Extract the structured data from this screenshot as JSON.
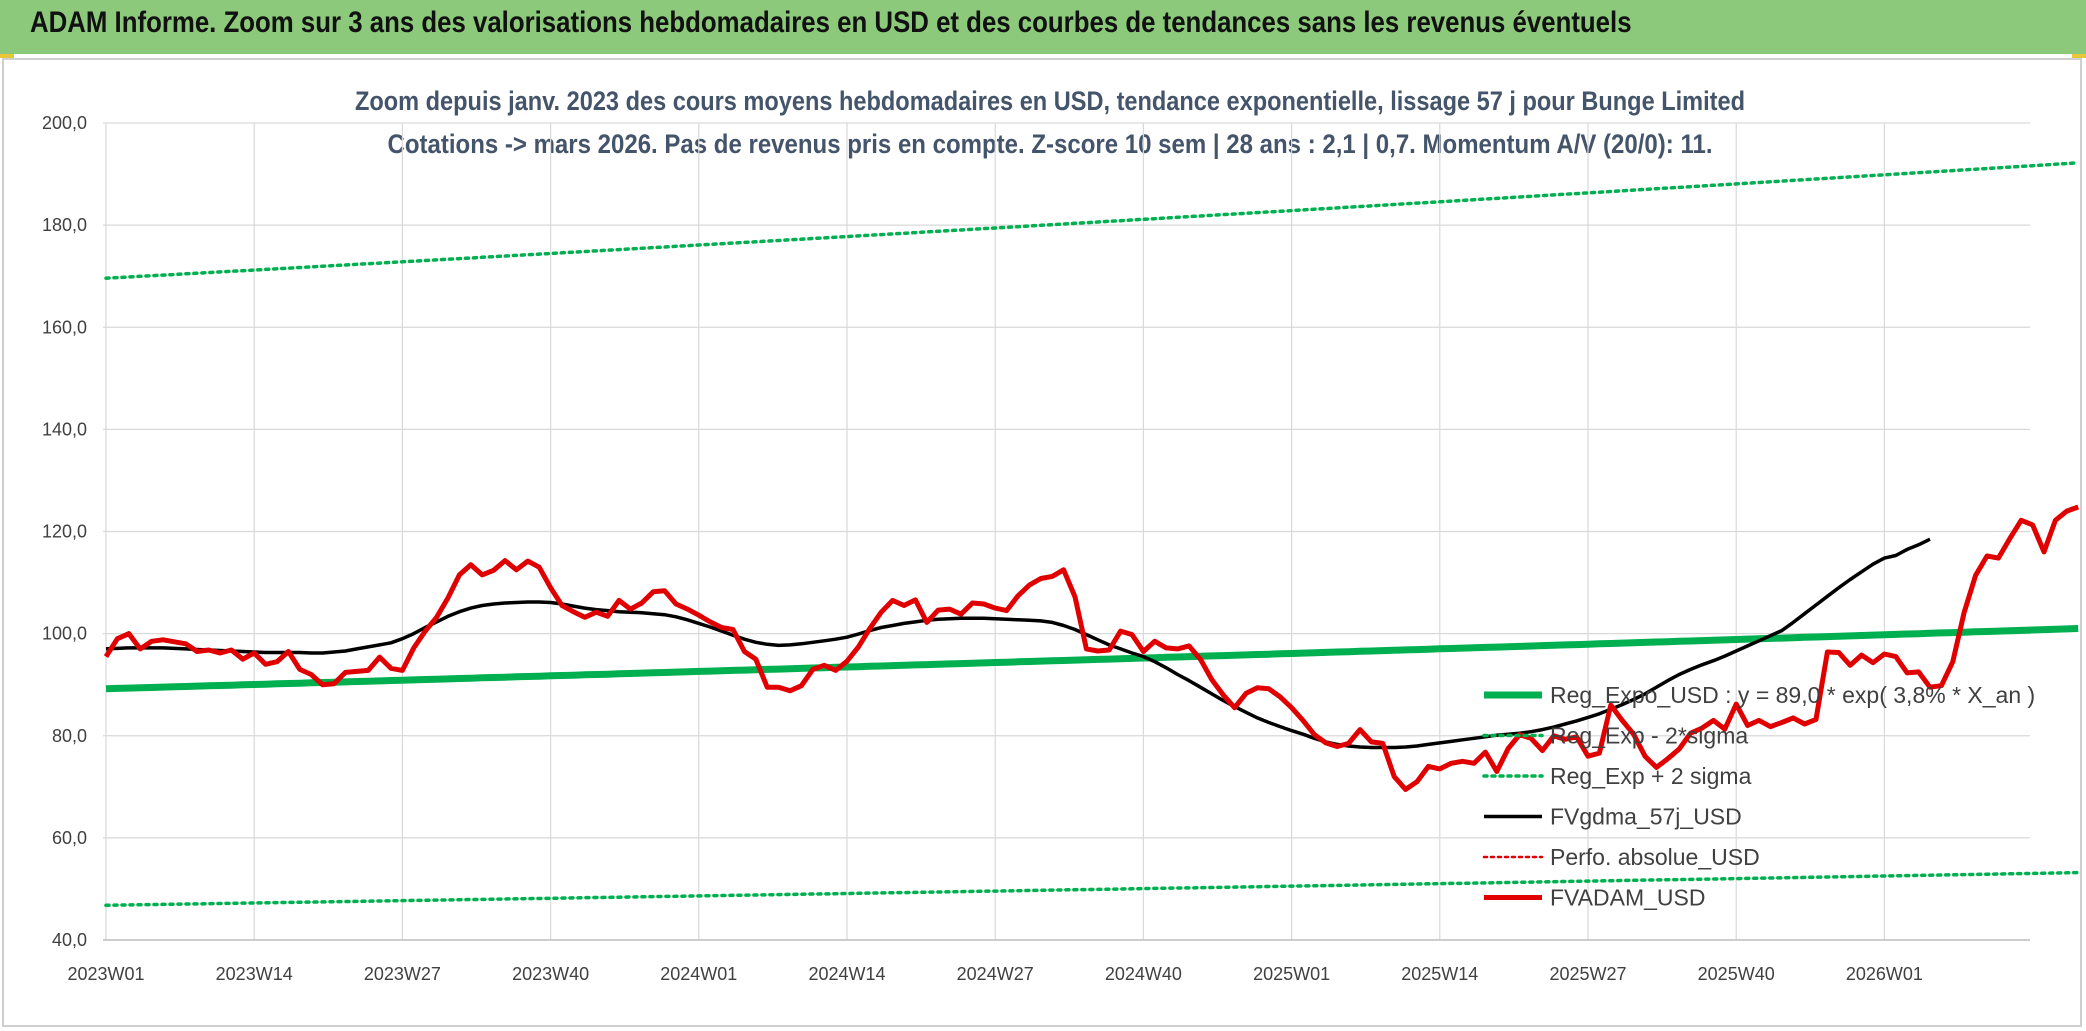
{
  "header": {
    "title": "ADAM Informe. Zoom sur 3 ans des valorisations hebdomadaires en USD et des courbes de tendances sans les revenus éventuels"
  },
  "chart_data": {
    "type": "line",
    "title_line1": "Zoom depuis janv. 2023 des cours moyens hebdomadaires en USD, tendance exponentielle, lissage 57 j pour Bunge Limited",
    "title_line2": "Cotations -> mars 2026. Pas de revenus pris en compte. Z-score 10 sem | 28 ans : 2,1 | 0,7. Momentum A/V (20/0): 11.",
    "ylim": [
      40,
      200
    ],
    "y_ticks": [
      "40,0",
      "60,0",
      "80,0",
      "100,0",
      "120,0",
      "140,0",
      "160,0",
      "180,0",
      "200,0"
    ],
    "x_ticks": [
      "2023W01",
      "2023W14",
      "2023W27",
      "2023W40",
      "2024W01",
      "2024W14",
      "2024W27",
      "2024W40",
      "2025W01",
      "2025W14",
      "2025W27",
      "2025W40",
      "2026W01"
    ],
    "grid": true,
    "legend_position": "lower-right",
    "colors": {
      "reg_expo": "#00b050",
      "sigma": "#00b050",
      "fvgdma": "#000000",
      "perfo": "#e00000",
      "fvadam": "#e00000"
    },
    "legend": [
      {
        "key": "reg_expo",
        "label": "Reg_Expo_USD : y = 89,0 * exp( 3,8% *  X_an )"
      },
      {
        "key": "sigma_minus",
        "label": "Reg_Exp - 2*sigma"
      },
      {
        "key": "sigma_plus",
        "label": "Reg_Exp + 2 sigma"
      },
      {
        "key": "fvgdma",
        "label": "FVgdma_57j_USD"
      },
      {
        "key": "perfo",
        "label": "Perfo. absolue_USD"
      },
      {
        "key": "fvadam",
        "label": "FVADAM_USD"
      }
    ],
    "series": {
      "reg_expo": {
        "start": 89.2,
        "end": 101.0
      },
      "sigma_minus": {
        "start": 46.8,
        "end": 53.2
      },
      "sigma_plus": {
        "start": 169.6,
        "end": 192.2
      },
      "fvgdma": [
        97,
        97.1,
        97.2,
        97.2,
        97.2,
        97.2,
        97.1,
        97,
        96.9,
        96.8,
        96.7,
        96.6,
        96.5,
        96.4,
        96.3,
        96.3,
        96.3,
        96.3,
        96.2,
        96.2,
        96.4,
        96.6,
        97,
        97.4,
        97.8,
        98.2,
        99,
        100,
        101.2,
        102.3,
        103.4,
        104.3,
        105,
        105.5,
        105.8,
        106,
        106.1,
        106.2,
        106.2,
        106.1,
        105.8,
        105.4,
        105,
        104.7,
        104.5,
        104.3,
        104.2,
        104.1,
        103.9,
        103.7,
        103.3,
        102.7,
        102,
        101.3,
        100.5,
        99.7,
        98.9,
        98.3,
        97.9,
        97.7,
        97.8,
        98,
        98.3,
        98.6,
        98.9,
        99.3,
        99.9,
        100.6,
        101.2,
        101.6,
        102,
        102.3,
        102.6,
        102.8,
        102.9,
        103,
        103,
        103,
        102.9,
        102.8,
        102.7,
        102.6,
        102.5,
        102.2,
        101.6,
        100.8,
        99.8,
        98.8,
        97.8,
        97,
        96.2,
        95.5,
        94.5,
        93.3,
        92,
        90.8,
        89.5,
        88.2,
        86.9,
        85.7,
        84.6,
        83.5,
        82.6,
        81.8,
        81,
        80.3,
        79.5,
        78.8,
        78.3,
        78,
        77.8,
        77.7,
        77.7,
        77.7,
        77.8,
        78,
        78.3,
        78.6,
        78.9,
        79.2,
        79.5,
        79.8,
        80.1,
        80.3,
        80.5,
        80.8,
        81.2,
        81.7,
        82.3,
        82.9,
        83.6,
        84.3,
        85.2,
        86.1,
        87.1,
        88.2,
        89.5,
        90.8,
        92,
        93,
        93.9,
        94.7,
        95.6,
        96.6,
        97.6,
        98.6,
        99.6,
        100.6,
        102.2,
        103.9,
        105.6,
        107.3,
        109,
        110.6,
        112.1,
        113.6,
        114.8,
        115.3,
        116.5,
        117.4,
        118.5
      ],
      "fvadam": [
        95.5,
        99,
        100,
        97,
        98.5,
        98.8,
        98.4,
        98,
        96.5,
        96.8,
        96.2,
        96.8,
        95,
        96.2,
        94,
        94.5,
        96.5,
        93,
        92,
        90,
        90.2,
        92.4,
        92.6,
        92.8,
        95.4,
        93.2,
        92.8,
        97.2,
        100.5,
        103.2,
        107,
        111.5,
        113.5,
        111.5,
        112.4,
        114.3,
        112.5,
        114.2,
        113,
        109,
        105.5,
        104.3,
        103.2,
        104.2,
        103.4,
        106.5,
        104.8,
        106,
        108.2,
        108.4,
        105.8,
        104.8,
        103.6,
        102.3,
        101.2,
        100.8,
        96.5,
        95,
        89.5,
        89.5,
        88.8,
        89.8,
        93,
        93.8,
        92.8,
        94.6,
        97.4,
        101,
        104.2,
        106.5,
        105.5,
        106.6,
        102.2,
        104.6,
        104.8,
        103.8,
        106,
        105.8,
        105,
        104.5,
        107.4,
        109.5,
        110.8,
        111.2,
        112.5,
        107.2,
        97,
        96.6,
        96.8,
        100.5,
        99.8,
        96.5,
        98.5,
        97.2,
        97,
        97.6,
        95,
        91,
        88,
        85.5,
        88.3,
        89.4,
        89.2,
        87.6,
        85.5,
        83,
        80.2,
        78.6,
        77.9,
        78.5,
        81.2,
        78.8,
        78.5,
        72,
        69.5,
        71,
        74,
        73.5,
        74.6,
        75,
        74.6,
        76.8,
        73,
        77.5,
        80.2,
        79.5,
        77.1,
        80,
        79.3,
        79.8,
        76,
        76.6,
        86,
        83,
        80.3,
        76,
        73.8,
        75.5,
        77.4,
        80.5,
        81.5,
        83,
        81.3,
        86.2,
        82,
        83,
        81.8,
        82.6,
        83.5,
        82.3,
        83.2,
        96.4,
        96.3,
        93.8,
        95.8,
        94.3,
        96,
        95.5,
        92.3,
        92.5,
        89.5,
        89.8,
        94.5,
        104.2,
        111.4,
        115.2,
        114.8,
        118.6,
        122.2,
        121.3,
        116,
        122.2,
        124,
        124.8
      ]
    }
  }
}
